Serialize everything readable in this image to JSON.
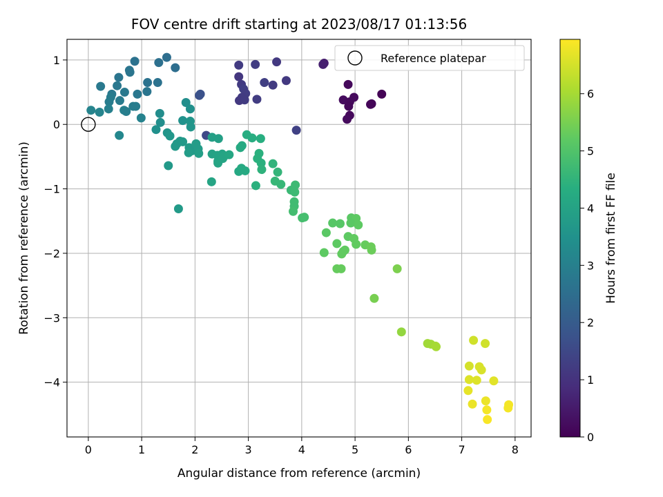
{
  "chart_data": {
    "type": "scatter",
    "title": "FOV centre drift starting at 2023/08/17 01:13:56",
    "xlabel": "Angular distance from reference (arcmin)",
    "ylabel": "Rotation from reference (arcmin)",
    "xlim": [
      -0.4,
      8.3
    ],
    "ylim": [
      -4.85,
      1.32
    ],
    "xticks": [
      0,
      1,
      2,
      3,
      4,
      5,
      6,
      7,
      8
    ],
    "yticks": [
      1,
      0,
      -1,
      -2,
      -3,
      -4
    ],
    "xtick_labels": [
      "0",
      "1",
      "2",
      "3",
      "4",
      "5",
      "6",
      "7",
      "8"
    ],
    "ytick_labels": [
      "1",
      "0",
      "−1",
      "−2",
      "−3",
      "−4"
    ],
    "grid": true,
    "legend": {
      "placement": "top-right",
      "entries": [
        "Reference platepar"
      ]
    },
    "reference_point": {
      "x": 0,
      "y": 0,
      "label": "Reference platepar"
    },
    "colorbar": {
      "label": "Hours from first FF file",
      "colormap": "viridis",
      "range": [
        0,
        6.95
      ],
      "ticks": [
        0,
        1,
        2,
        3,
        4,
        5,
        6
      ],
      "tick_labels": [
        "0",
        "1",
        "2",
        "3",
        "4",
        "5",
        "6"
      ]
    },
    "points": [
      {
        "x": 4.87,
        "y": 0.62,
        "t": 0.15
      },
      {
        "x": 4.78,
        "y": 0.38,
        "t": 0.2
      },
      {
        "x": 4.9,
        "y": 0.35,
        "t": 0.15
      },
      {
        "x": 4.98,
        "y": 0.42,
        "t": 0.18
      },
      {
        "x": 4.88,
        "y": 0.28,
        "t": 0.12
      },
      {
        "x": 4.9,
        "y": 0.14,
        "t": 0.16
      },
      {
        "x": 4.85,
        "y": 0.08,
        "t": 0.2
      },
      {
        "x": 5.31,
        "y": 0.32,
        "t": 0.1
      },
      {
        "x": 5.29,
        "y": 0.31,
        "t": 0.1
      },
      {
        "x": 5.5,
        "y": 0.47,
        "t": 0.05
      },
      {
        "x": 4.42,
        "y": 0.95,
        "t": 0.55
      },
      {
        "x": 4.4,
        "y": 0.93,
        "t": 0.6
      },
      {
        "x": 2.82,
        "y": 0.92,
        "t": 1.2
      },
      {
        "x": 3.13,
        "y": 0.93,
        "t": 1.25
      },
      {
        "x": 3.53,
        "y": 0.97,
        "t": 1.15
      },
      {
        "x": 2.82,
        "y": 0.74,
        "t": 1.1
      },
      {
        "x": 2.87,
        "y": 0.62,
        "t": 1.2
      },
      {
        "x": 2.91,
        "y": 0.55,
        "t": 1.3
      },
      {
        "x": 2.95,
        "y": 0.48,
        "t": 1.25
      },
      {
        "x": 2.88,
        "y": 0.42,
        "t": 1.2
      },
      {
        "x": 2.83,
        "y": 0.37,
        "t": 1.15
      },
      {
        "x": 2.93,
        "y": 0.38,
        "t": 1.2
      },
      {
        "x": 3.16,
        "y": 0.39,
        "t": 1.25
      },
      {
        "x": 3.3,
        "y": 0.65,
        "t": 1.3
      },
      {
        "x": 3.46,
        "y": 0.61,
        "t": 1.2
      },
      {
        "x": 3.71,
        "y": 0.68,
        "t": 1.15
      },
      {
        "x": 3.9,
        "y": -0.09,
        "t": 1.35
      },
      {
        "x": 2.21,
        "y": -0.17,
        "t": 1.5
      },
      {
        "x": 2.08,
        "y": 0.45,
        "t": 1.7
      },
      {
        "x": 2.1,
        "y": 0.47,
        "t": 1.75
      },
      {
        "x": 0.87,
        "y": 0.98,
        "t": 2.6
      },
      {
        "x": 1.47,
        "y": 1.04,
        "t": 2.5
      },
      {
        "x": 1.32,
        "y": 0.96,
        "t": 2.55
      },
      {
        "x": 1.63,
        "y": 0.88,
        "t": 2.5
      },
      {
        "x": 0.77,
        "y": 0.84,
        "t": 2.7
      },
      {
        "x": 0.78,
        "y": 0.81,
        "t": 2.7
      },
      {
        "x": 0.57,
        "y": 0.73,
        "t": 2.7
      },
      {
        "x": 1.11,
        "y": 0.65,
        "t": 2.6
      },
      {
        "x": 1.3,
        "y": 0.65,
        "t": 2.6
      },
      {
        "x": 0.23,
        "y": 0.59,
        "t": 2.8
      },
      {
        "x": 0.54,
        "y": 0.6,
        "t": 2.75
      },
      {
        "x": 0.68,
        "y": 0.5,
        "t": 2.8
      },
      {
        "x": 0.44,
        "y": 0.47,
        "t": 2.8
      },
      {
        "x": 0.92,
        "y": 0.47,
        "t": 2.75
      },
      {
        "x": 1.1,
        "y": 0.51,
        "t": 2.7
      },
      {
        "x": 0.42,
        "y": 0.42,
        "t": 2.9
      },
      {
        "x": 0.39,
        "y": 0.35,
        "t": 2.9
      },
      {
        "x": 0.59,
        "y": 0.37,
        "t": 2.85
      },
      {
        "x": 0.38,
        "y": 0.24,
        "t": 3.0
      },
      {
        "x": 0.84,
        "y": 0.28,
        "t": 2.9
      },
      {
        "x": 0.89,
        "y": 0.28,
        "t": 2.9
      },
      {
        "x": 0.67,
        "y": 0.22,
        "t": 3.0
      },
      {
        "x": 0.71,
        "y": 0.2,
        "t": 2.95
      },
      {
        "x": 0.05,
        "y": 0.22,
        "t": 3.1
      },
      {
        "x": 0.21,
        "y": 0.19,
        "t": 3.1
      },
      {
        "x": 0.99,
        "y": 0.1,
        "t": 3.05
      },
      {
        "x": 0.58,
        "y": -0.17,
        "t": 3.2
      },
      {
        "x": 1.34,
        "y": 0.17,
        "t": 3.35
      },
      {
        "x": 1.35,
        "y": 0.03,
        "t": 3.4
      },
      {
        "x": 1.27,
        "y": -0.08,
        "t": 3.45
      },
      {
        "x": 1.77,
        "y": 0.06,
        "t": 3.5
      },
      {
        "x": 1.83,
        "y": 0.34,
        "t": 3.4
      },
      {
        "x": 1.91,
        "y": 0.24,
        "t": 3.45
      },
      {
        "x": 1.91,
        "y": 0.05,
        "t": 3.6
      },
      {
        "x": 1.92,
        "y": -0.04,
        "t": 3.6
      },
      {
        "x": 1.48,
        "y": -0.13,
        "t": 3.6
      },
      {
        "x": 1.53,
        "y": -0.18,
        "t": 3.65
      },
      {
        "x": 1.72,
        "y": -0.26,
        "t": 3.7
      },
      {
        "x": 1.66,
        "y": -0.3,
        "t": 3.7
      },
      {
        "x": 1.63,
        "y": -0.34,
        "t": 3.7
      },
      {
        "x": 1.77,
        "y": -0.27,
        "t": 3.7
      },
      {
        "x": 1.89,
        "y": -0.36,
        "t": 3.75
      },
      {
        "x": 1.94,
        "y": -0.41,
        "t": 3.75
      },
      {
        "x": 1.88,
        "y": -0.44,
        "t": 3.8
      },
      {
        "x": 2.02,
        "y": -0.3,
        "t": 3.8
      },
      {
        "x": 2.06,
        "y": -0.38,
        "t": 3.8
      },
      {
        "x": 2.07,
        "y": -0.45,
        "t": 3.85
      },
      {
        "x": 1.5,
        "y": -0.64,
        "t": 3.7
      },
      {
        "x": 1.69,
        "y": -1.31,
        "t": 3.75
      },
      {
        "x": 2.32,
        "y": -0.2,
        "t": 3.9
      },
      {
        "x": 2.44,
        "y": -0.22,
        "t": 3.9
      },
      {
        "x": 2.32,
        "y": -0.46,
        "t": 3.95
      },
      {
        "x": 2.42,
        "y": -0.48,
        "t": 4.0
      },
      {
        "x": 2.51,
        "y": -0.46,
        "t": 4.0
      },
      {
        "x": 2.43,
        "y": -0.57,
        "t": 4.0
      },
      {
        "x": 2.43,
        "y": -0.6,
        "t": 4.05
      },
      {
        "x": 2.52,
        "y": -0.53,
        "t": 4.05
      },
      {
        "x": 2.55,
        "y": -0.49,
        "t": 4.05
      },
      {
        "x": 2.64,
        "y": -0.47,
        "t": 4.1
      },
      {
        "x": 2.31,
        "y": -0.89,
        "t": 4.05
      },
      {
        "x": 2.82,
        "y": -0.73,
        "t": 4.15
      },
      {
        "x": 2.87,
        "y": -0.68,
        "t": 4.2
      },
      {
        "x": 2.94,
        "y": -0.72,
        "t": 4.2
      },
      {
        "x": 2.85,
        "y": -0.36,
        "t": 4.2
      },
      {
        "x": 2.88,
        "y": -0.33,
        "t": 4.2
      },
      {
        "x": 2.97,
        "y": -0.16,
        "t": 4.3
      },
      {
        "x": 3.07,
        "y": -0.21,
        "t": 4.3
      },
      {
        "x": 3.23,
        "y": -0.22,
        "t": 4.35
      },
      {
        "x": 3.2,
        "y": -0.45,
        "t": 4.4
      },
      {
        "x": 3.17,
        "y": -0.53,
        "t": 4.4
      },
      {
        "x": 3.24,
        "y": -0.6,
        "t": 4.4
      },
      {
        "x": 3.25,
        "y": -0.7,
        "t": 4.45
      },
      {
        "x": 3.14,
        "y": -0.95,
        "t": 4.4
      },
      {
        "x": 3.46,
        "y": -0.61,
        "t": 4.5
      },
      {
        "x": 3.55,
        "y": -0.74,
        "t": 4.55
      },
      {
        "x": 3.5,
        "y": -0.88,
        "t": 4.6
      },
      {
        "x": 3.61,
        "y": -0.93,
        "t": 4.6
      },
      {
        "x": 3.8,
        "y": -1.02,
        "t": 4.65
      },
      {
        "x": 3.88,
        "y": -0.94,
        "t": 4.7
      },
      {
        "x": 3.87,
        "y": -1.05,
        "t": 4.7
      },
      {
        "x": 3.86,
        "y": -1.2,
        "t": 4.75
      },
      {
        "x": 3.86,
        "y": -1.27,
        "t": 4.75
      },
      {
        "x": 3.84,
        "y": -1.35,
        "t": 4.8
      },
      {
        "x": 4.01,
        "y": -1.45,
        "t": 4.85
      },
      {
        "x": 4.05,
        "y": -1.44,
        "t": 4.85
      },
      {
        "x": 4.58,
        "y": -1.53,
        "t": 5.1
      },
      {
        "x": 4.72,
        "y": -1.54,
        "t": 5.1
      },
      {
        "x": 4.93,
        "y": -1.45,
        "t": 5.15
      },
      {
        "x": 5.02,
        "y": -1.46,
        "t": 5.2
      },
      {
        "x": 4.92,
        "y": -1.53,
        "t": 5.15
      },
      {
        "x": 5.06,
        "y": -1.56,
        "t": 5.2
      },
      {
        "x": 4.46,
        "y": -1.68,
        "t": 5.15
      },
      {
        "x": 4.87,
        "y": -1.74,
        "t": 5.2
      },
      {
        "x": 4.98,
        "y": -1.77,
        "t": 5.25
      },
      {
        "x": 5.02,
        "y": -1.86,
        "t": 5.25
      },
      {
        "x": 4.66,
        "y": -1.85,
        "t": 5.2
      },
      {
        "x": 4.81,
        "y": -1.95,
        "t": 5.25
      },
      {
        "x": 4.78,
        "y": -1.97,
        "t": 5.25
      },
      {
        "x": 4.42,
        "y": -1.99,
        "t": 5.2
      },
      {
        "x": 4.75,
        "y": -2.01,
        "t": 5.25
      },
      {
        "x": 5.19,
        "y": -1.87,
        "t": 5.3
      },
      {
        "x": 5.3,
        "y": -1.9,
        "t": 5.35
      },
      {
        "x": 5.31,
        "y": -1.95,
        "t": 5.35
      },
      {
        "x": 4.66,
        "y": -2.24,
        "t": 5.3
      },
      {
        "x": 4.74,
        "y": -2.24,
        "t": 5.3
      },
      {
        "x": 5.79,
        "y": -2.24,
        "t": 5.55
      },
      {
        "x": 5.36,
        "y": -2.7,
        "t": 5.5
      },
      {
        "x": 5.87,
        "y": -3.22,
        "t": 5.8
      },
      {
        "x": 6.36,
        "y": -3.4,
        "t": 5.95
      },
      {
        "x": 6.42,
        "y": -3.41,
        "t": 5.95
      },
      {
        "x": 6.51,
        "y": -3.44,
        "t": 6.0
      },
      {
        "x": 6.52,
        "y": -3.45,
        "t": 6.0
      },
      {
        "x": 7.22,
        "y": -3.35,
        "t": 6.45
      },
      {
        "x": 7.44,
        "y": -3.4,
        "t": 6.45
      },
      {
        "x": 7.14,
        "y": -3.75,
        "t": 6.5
      },
      {
        "x": 7.33,
        "y": -3.76,
        "t": 6.55
      },
      {
        "x": 7.37,
        "y": -3.81,
        "t": 6.55
      },
      {
        "x": 7.14,
        "y": -3.96,
        "t": 6.6
      },
      {
        "x": 7.28,
        "y": -3.97,
        "t": 6.6
      },
      {
        "x": 7.6,
        "y": -3.98,
        "t": 6.65
      },
      {
        "x": 7.12,
        "y": -4.13,
        "t": 6.7
      },
      {
        "x": 7.45,
        "y": -4.29,
        "t": 6.75
      },
      {
        "x": 7.2,
        "y": -4.34,
        "t": 6.75
      },
      {
        "x": 7.88,
        "y": -4.35,
        "t": 6.85
      },
      {
        "x": 7.87,
        "y": -4.4,
        "t": 6.85
      },
      {
        "x": 7.47,
        "y": -4.43,
        "t": 6.85
      },
      {
        "x": 7.48,
        "y": -4.58,
        "t": 6.9
      }
    ]
  }
}
